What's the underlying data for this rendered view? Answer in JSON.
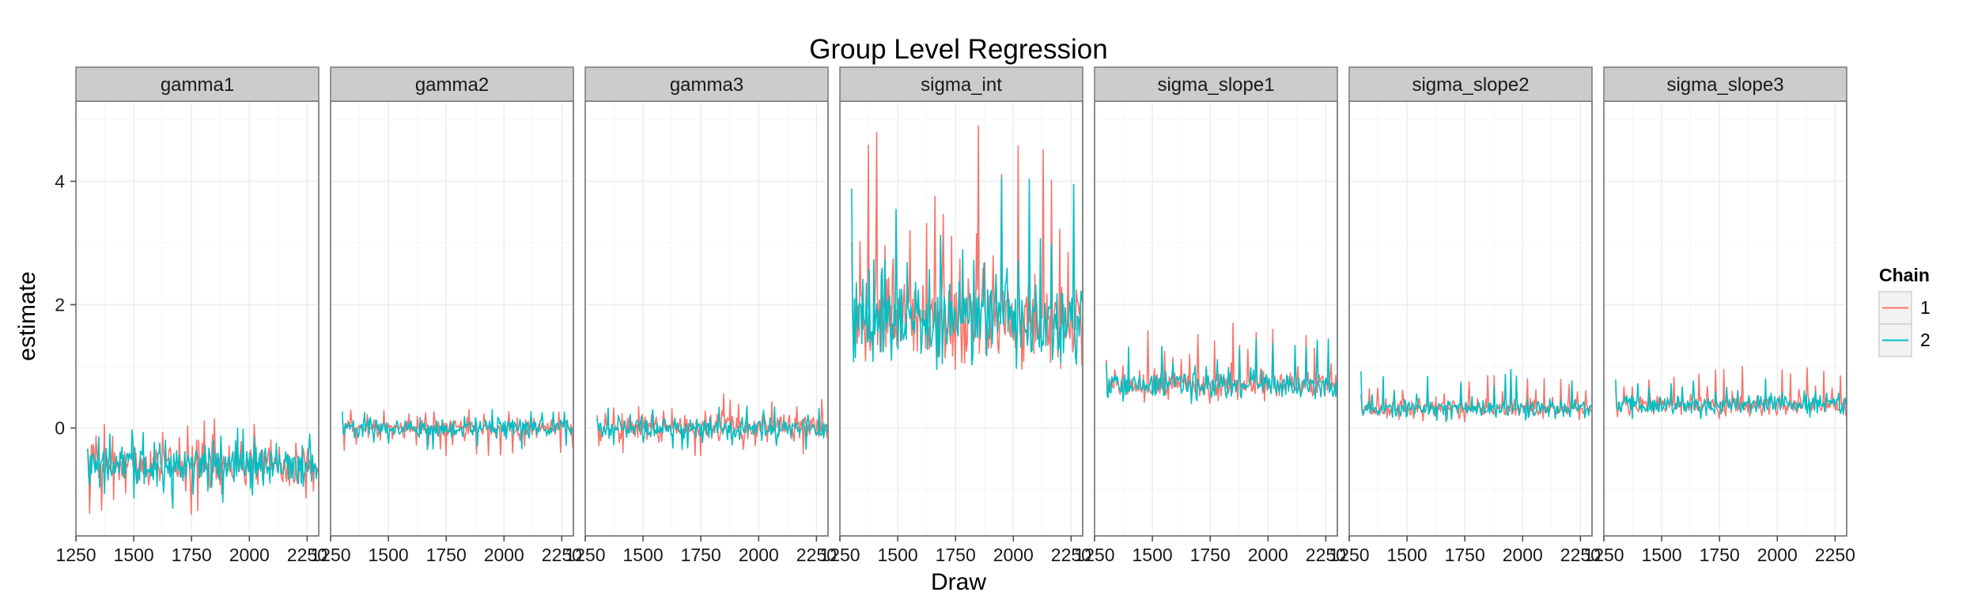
{
  "chart_data": {
    "type": "line",
    "title": "Group Level Regression",
    "xlabel": "Draw",
    "ylabel": "estimate",
    "xlim": [
      1250,
      2300
    ],
    "ylim": [
      -1.75,
      5.3
    ],
    "x_ticks": [
      1250,
      1500,
      1750,
      2000,
      2250
    ],
    "y_ticks": [
      0,
      2,
      4
    ],
    "grid": true,
    "legend": {
      "title": "Chain",
      "position": "right",
      "entries": [
        "1",
        "2"
      ]
    },
    "colors": {
      "1": "#f8766d",
      "2": "#00bfc4"
    },
    "draw_range": [
      1301,
      2300
    ],
    "panels": [
      {
        "name": "gamma1",
        "series": [
          {
            "name": "1",
            "mean": -0.6,
            "sd": 0.2,
            "min": -1.4,
            "max": 0.15
          },
          {
            "name": "2",
            "mean": -0.6,
            "sd": 0.2,
            "min": -1.3,
            "max": 0.0
          }
        ]
      },
      {
        "name": "gamma2",
        "series": [
          {
            "name": "1",
            "mean": 0.0,
            "sd": 0.09,
            "min": -0.45,
            "max": 0.3
          },
          {
            "name": "2",
            "mean": 0.0,
            "sd": 0.09,
            "min": -0.35,
            "max": 0.3
          }
        ]
      },
      {
        "name": "gamma3",
        "series": [
          {
            "name": "1",
            "mean": 0.0,
            "sd": 0.12,
            "min": -0.45,
            "max": 0.55
          },
          {
            "name": "2",
            "mean": 0.0,
            "sd": 0.1,
            "min": -0.35,
            "max": 0.35
          }
        ]
      },
      {
        "name": "sigma_int",
        "series": [
          {
            "name": "1",
            "mean": 1.8,
            "sd": 0.4,
            "min": 0.95,
            "max": 4.9
          },
          {
            "name": "2",
            "mean": 1.8,
            "sd": 0.38,
            "min": 0.95,
            "max": 4.05
          }
        ]
      },
      {
        "name": "sigma_slope1",
        "series": [
          {
            "name": "1",
            "mean": 0.7,
            "sd": 0.13,
            "min": 0.4,
            "max": 1.7
          },
          {
            "name": "2",
            "mean": 0.7,
            "sd": 0.12,
            "min": 0.4,
            "max": 1.45
          }
        ]
      },
      {
        "name": "sigma_slope2",
        "series": [
          {
            "name": "1",
            "mean": 0.32,
            "sd": 0.08,
            "min": 0.1,
            "max": 0.85
          },
          {
            "name": "2",
            "mean": 0.32,
            "sd": 0.08,
            "min": 0.1,
            "max": 0.95
          }
        ]
      },
      {
        "name": "sigma_slope3",
        "series": [
          {
            "name": "1",
            "mean": 0.38,
            "sd": 0.09,
            "min": 0.15,
            "max": 1.0
          },
          {
            "name": "2",
            "mean": 0.38,
            "sd": 0.09,
            "min": 0.15,
            "max": 0.8
          }
        ]
      }
    ]
  }
}
